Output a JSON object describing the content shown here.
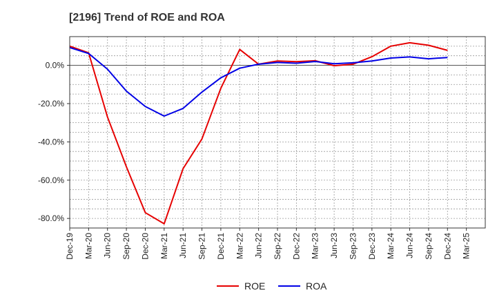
{
  "chart_data": {
    "type": "line",
    "title": "[2196]  Trend of ROE and ROA",
    "xlabel": "",
    "ylabel": "",
    "categories": [
      "Dec-19",
      "Mar-20",
      "Jun-20",
      "Sep-20",
      "Dec-20",
      "Mar-21",
      "Jun-21",
      "Sep-21",
      "Dec-21",
      "Mar-22",
      "Jun-22",
      "Sep-22",
      "Dec-22",
      "Mar-23",
      "Jun-23",
      "Sep-23",
      "Dec-23",
      "Mar-24",
      "Jun-24",
      "Sep-24",
      "Dec-24",
      "Mar-25"
    ],
    "y_ticks": [
      0,
      -20,
      -40,
      -60,
      -80
    ],
    "y_tick_labels": [
      "0.0%",
      "-20.0%",
      "-40.0%",
      "-60.0%",
      "-80.0%"
    ],
    "ylim": [
      -85,
      15
    ],
    "grid": true,
    "legend_position": "bottom",
    "series": [
      {
        "name": "ROE",
        "color": "#e60000",
        "values": [
          10.0,
          6.5,
          -27.0,
          -53.0,
          -77.0,
          -82.8,
          -54.0,
          -38.5,
          -12.0,
          8.3,
          0.6,
          2.3,
          1.9,
          2.4,
          -0.2,
          0.6,
          4.5,
          10.0,
          11.8,
          10.5,
          7.8,
          null
        ]
      },
      {
        "name": "ROA",
        "color": "#0000e6",
        "values": [
          9.3,
          6.2,
          -2.0,
          -13.5,
          -21.5,
          -26.5,
          -22.5,
          -14.0,
          -6.5,
          -1.5,
          0.6,
          1.5,
          1.1,
          2.0,
          0.8,
          1.3,
          2.3,
          3.8,
          4.4,
          3.4,
          4.1,
          null
        ]
      }
    ]
  }
}
